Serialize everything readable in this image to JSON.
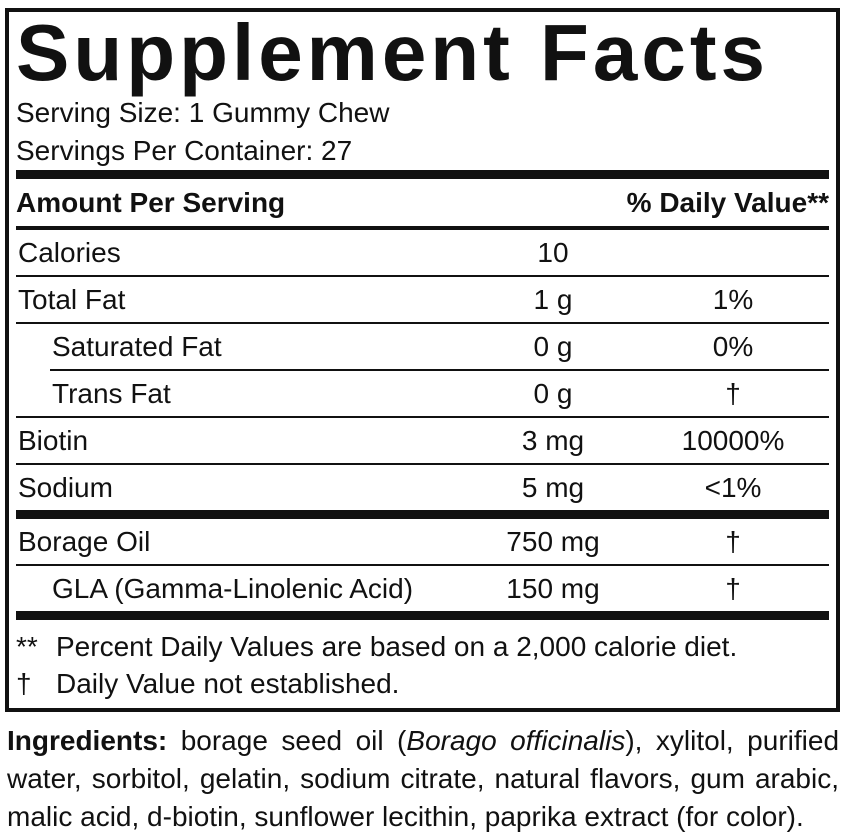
{
  "colors": {
    "text": "#111111",
    "background": "#ffffff",
    "rule": "#111111"
  },
  "panel": {
    "title": "Supplement Facts",
    "serving_size": "Serving Size: 1 Gummy Chew",
    "servings_per_container": "Servings Per Container: 27",
    "columns": {
      "amount": "Amount Per Serving",
      "dv": "% Daily Value**"
    },
    "rows": [
      {
        "name": "Calories",
        "amount": "10",
        "dv": "",
        "indent": false,
        "divider": "thin"
      },
      {
        "name": "Total Fat",
        "amount": "1 g",
        "dv": "1%",
        "indent": false,
        "divider": "thin"
      },
      {
        "name": "Saturated Fat",
        "amount": "0 g",
        "dv": "0%",
        "indent": true,
        "divider": "thin-indent"
      },
      {
        "name": "Trans Fat",
        "amount": "0 g",
        "dv": "†",
        "indent": true,
        "divider": "thin"
      },
      {
        "name": "Biotin",
        "amount": "3 mg",
        "dv": "10000%",
        "indent": false,
        "divider": "thin"
      },
      {
        "name": "Sodium",
        "amount": "5 mg",
        "dv": "<1%",
        "indent": false,
        "divider": "thick"
      },
      {
        "name": "Borage Oil",
        "amount": "750 mg",
        "dv": "†",
        "indent": false,
        "divider": "thin"
      },
      {
        "name": "GLA (Gamma-Linolenic Acid)",
        "amount": "150 mg",
        "dv": "†",
        "indent": true,
        "divider": "none"
      }
    ],
    "footnotes": [
      {
        "marker": "**",
        "text": "Percent Daily Values are based on a 2,000 calorie diet."
      },
      {
        "marker": "†",
        "text": "Daily Value not established."
      }
    ]
  },
  "ingredients": {
    "label": "Ingredients:",
    "pre_italic": " borage seed oil (",
    "italic": "Borago officinalis",
    "post_italic": "), xylitol, purified water, sorbitol, gelatin, sodium citrate, natural flavors, gum arabic, malic acid, d-biotin, sunflower lecithin, paprika extract (for color)."
  }
}
